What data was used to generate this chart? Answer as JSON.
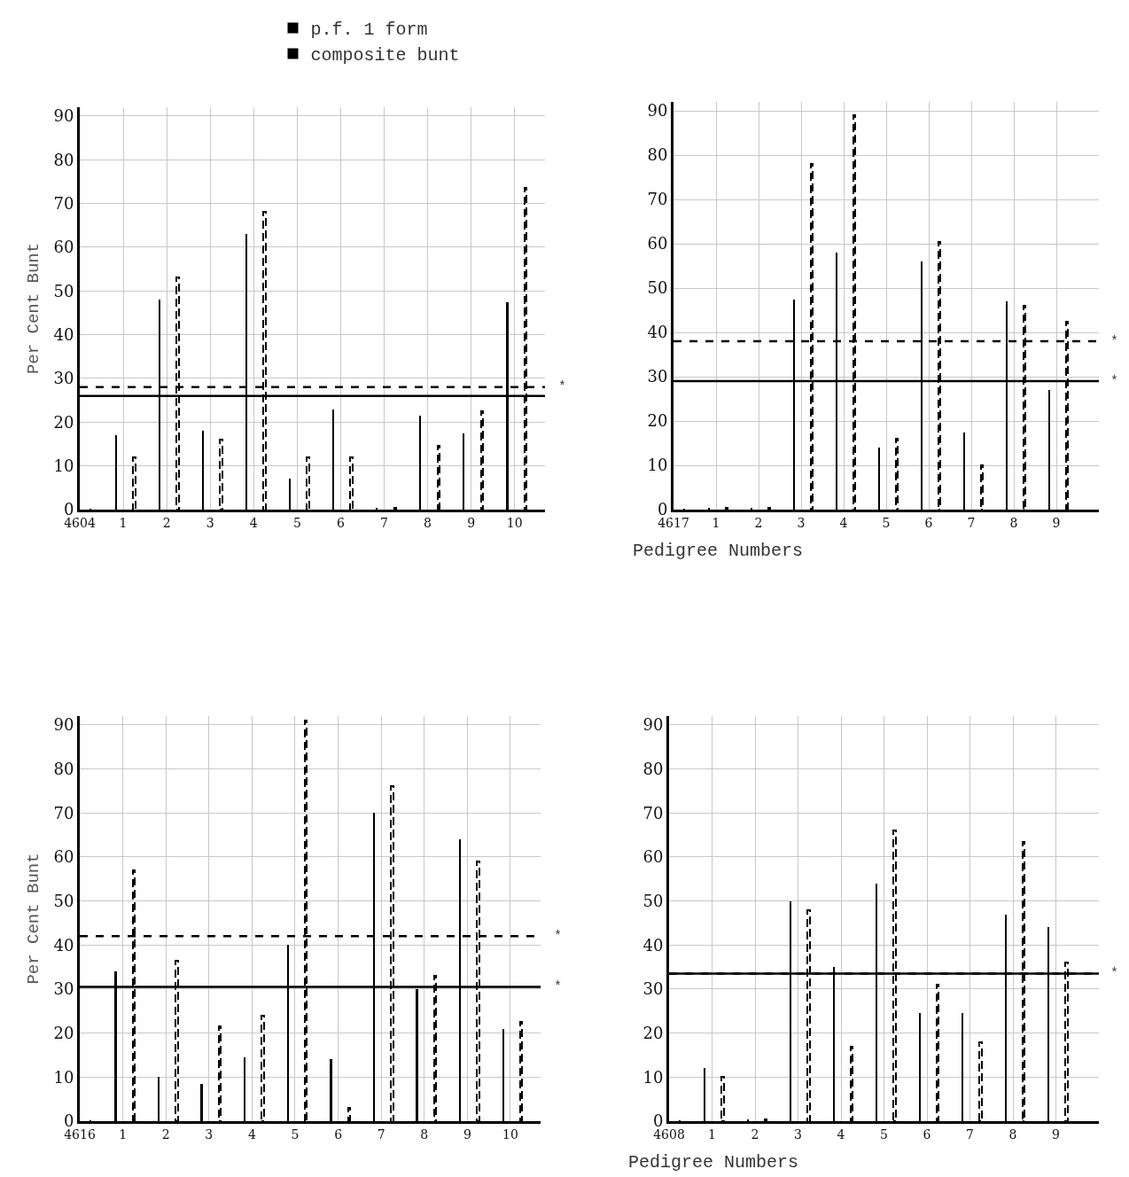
{
  "chart_data": [
    {
      "type": "bar",
      "ylabel": "Per Cent Bunt",
      "categories": [
        "4604",
        "1",
        "2",
        "3",
        "4",
        "5",
        "6",
        "7",
        "8",
        "9",
        "10"
      ],
      "ylim": [
        0,
        92
      ],
      "yticks": [
        0,
        10,
        20,
        30,
        40,
        50,
        60,
        70,
        80,
        90
      ],
      "grid": true,
      "legend": "top",
      "series": [
        {
          "name": "p.f. 1 form",
          "color": "#000000",
          "line_style": "solid",
          "values": [
            null,
            17,
            48,
            18,
            63,
            7,
            23,
            0.5,
            21.5,
            17.5,
            47.5
          ]
        },
        {
          "name": "composite bunt",
          "color": "#000000",
          "line_style": "dashed",
          "values": [
            null,
            12,
            53,
            16,
            68,
            12,
            12,
            0.5,
            14.5,
            22.5,
            73.5
          ]
        }
      ],
      "ref_lines": [
        {
          "axis": "y",
          "value": 26,
          "label": null,
          "color": "#000000",
          "line_style": "solid"
        },
        {
          "axis": "y",
          "value": 28,
          "label": "*",
          "color": "#000000",
          "line_style": "dashed"
        }
      ]
    },
    {
      "type": "bar",
      "xlabel": "Pedigree Numbers",
      "categories": [
        "4617",
        "1",
        "2",
        "3",
        "4",
        "5",
        "6",
        "7",
        "8",
        "9"
      ],
      "ylim": [
        0,
        92
      ],
      "yticks": [
        0,
        10,
        20,
        30,
        40,
        50,
        60,
        70,
        80,
        90
      ],
      "grid": true,
      "series": [
        {
          "color": "#000000",
          "line_style": "solid",
          "values": [
            null,
            0.5,
            0.5,
            47.5,
            58,
            14,
            56,
            17.5,
            47,
            27
          ]
        },
        {
          "color": "#000000",
          "line_style": "dashed",
          "values": [
            null,
            0.5,
            0.5,
            78,
            89,
            16,
            60.5,
            10,
            46,
            42.5
          ]
        }
      ],
      "ref_lines": [
        {
          "axis": "y",
          "value": 29,
          "label": "*",
          "color": "#000000",
          "line_style": "solid"
        },
        {
          "axis": "y",
          "value": 38,
          "label": "*",
          "color": "#000000",
          "line_style": "dashed"
        }
      ]
    },
    {
      "type": "bar",
      "ylabel": "Per Cent Bunt",
      "categories": [
        "4616",
        "1",
        "2",
        "3",
        "4",
        "5",
        "6",
        "7",
        "8",
        "9",
        "10"
      ],
      "ylim": [
        0,
        92
      ],
      "yticks": [
        0,
        10,
        20,
        30,
        40,
        50,
        60,
        70,
        80,
        90
      ],
      "grid": true,
      "series": [
        {
          "color": "#000000",
          "line_style": "solid",
          "values": [
            null,
            34,
            10,
            8.5,
            14.5,
            40,
            14,
            70,
            30,
            64,
            21
          ]
        },
        {
          "color": "#000000",
          "line_style": "dashed",
          "values": [
            null,
            57,
            36.5,
            21.5,
            24,
            91,
            3,
            76,
            33,
            59,
            22.5
          ]
        }
      ],
      "ref_lines": [
        {
          "axis": "y",
          "value": 30.5,
          "label": "*",
          "color": "#000000",
          "line_style": "solid"
        },
        {
          "axis": "y",
          "value": 42,
          "label": "*",
          "color": "#000000",
          "line_style": "dashed"
        }
      ]
    },
    {
      "type": "bar",
      "xlabel": "Pedigree Numbers",
      "categories": [
        "4608",
        "1",
        "2",
        "3",
        "4",
        "5",
        "6",
        "7",
        "8",
        "9"
      ],
      "ylim": [
        0,
        92
      ],
      "yticks": [
        0,
        10,
        20,
        30,
        40,
        50,
        60,
        70,
        80,
        90
      ],
      "grid": true,
      "series": [
        {
          "color": "#000000",
          "line_style": "solid",
          "values": [
            null,
            12,
            0.5,
            50,
            35,
            54,
            24.5,
            24.5,
            47,
            44
          ]
        },
        {
          "color": "#000000",
          "line_style": "dashed",
          "values": [
            null,
            10,
            0.5,
            48,
            17,
            66,
            31,
            18,
            63.5,
            36
          ]
        }
      ],
      "ref_lines": [
        {
          "axis": "y",
          "value": 33.5,
          "label": null,
          "color": "#000000",
          "line_style": "solid"
        },
        {
          "axis": "y",
          "value": 33.5,
          "label": "*",
          "color": "#000000",
          "line_style": "dashed"
        }
      ]
    }
  ]
}
